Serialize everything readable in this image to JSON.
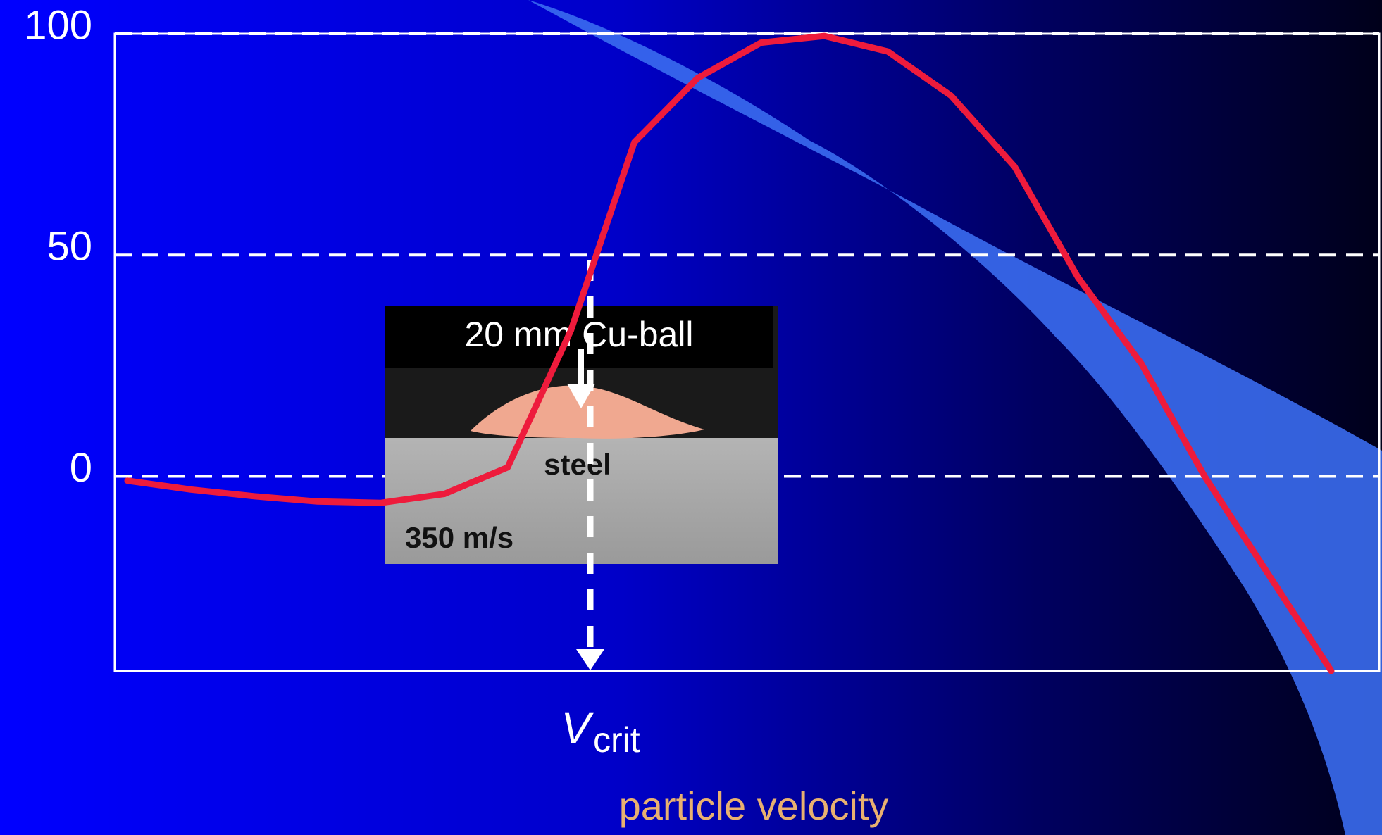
{
  "chart_data": {
    "type": "line",
    "x_label": "particle velocity",
    "x_marker_label": {
      "main": "V",
      "sub": "crit"
    },
    "annotations": [
      "20 mm Cu-ball",
      "steel",
      "350 m/s"
    ],
    "categories": [
      null,
      null,
      null,
      null,
      null,
      null,
      null,
      null,
      null,
      null,
      null,
      null,
      null,
      null,
      null,
      null,
      null,
      null,
      null,
      null
    ],
    "series": [
      {
        "color": "#ee1b3c",
        "values": [
          -1,
          -3,
          -4.5,
          -5.7,
          -6,
          -4,
          2,
          33,
          75.5,
          90,
          98,
          99.5,
          96,
          86,
          70,
          45,
          25.5,
          0,
          -22,
          -44
        ]
      }
    ],
    "ylim": [
      -44,
      100
    ],
    "yticks": [
      0,
      50,
      100
    ],
    "grid": true
  }
}
